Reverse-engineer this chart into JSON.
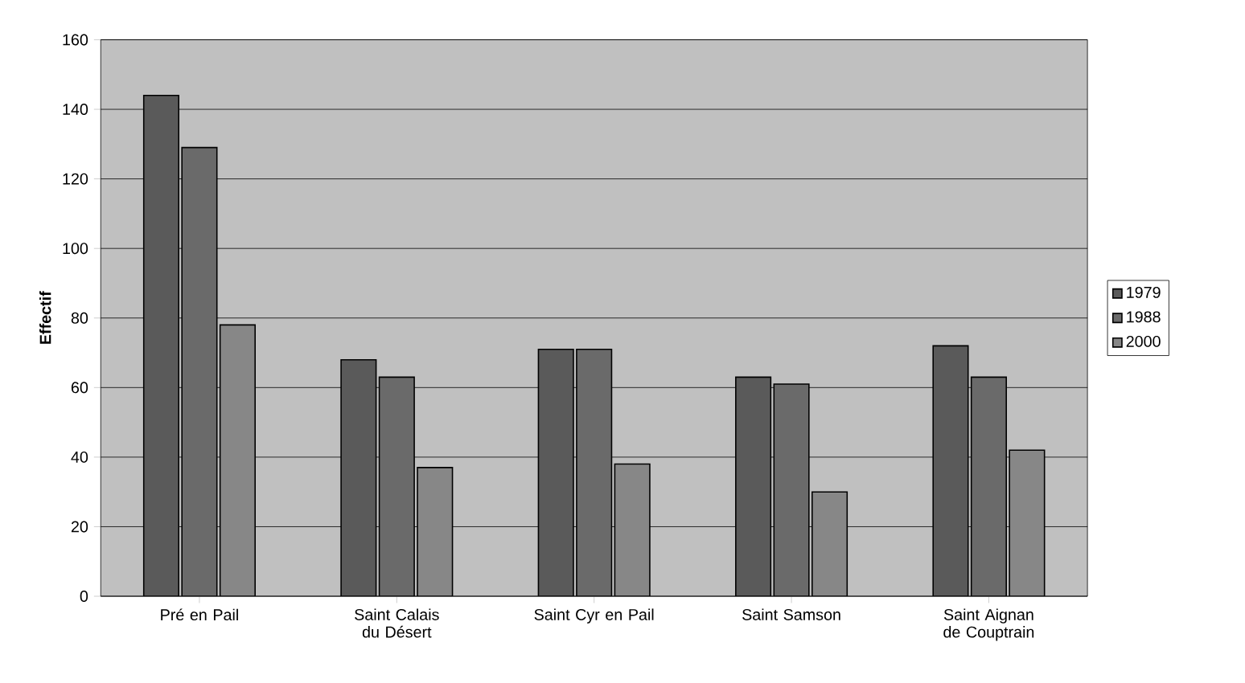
{
  "chart_data": {
    "type": "bar",
    "ylabel": "Effectif",
    "categories": [
      "Pré en Pail",
      "Saint Calais du Désert",
      "Saint Cyr en Pail",
      "Saint Samson",
      "Saint Aignan de Couptrain"
    ],
    "series": [
      {
        "name": "1979",
        "color": "#5a5a5a",
        "values": [
          144,
          68,
          71,
          63,
          72
        ]
      },
      {
        "name": "1988",
        "color": "#6a6a6a",
        "values": [
          129,
          63,
          71,
          61,
          63
        ]
      },
      {
        "name": "2000",
        "color": "#878787",
        "values": [
          78,
          37,
          38,
          30,
          42
        ]
      }
    ],
    "ylim": [
      0,
      160
    ],
    "yticks": [
      0,
      20,
      40,
      60,
      80,
      100,
      120,
      140,
      160
    ],
    "grid": "y",
    "legend": "right"
  }
}
